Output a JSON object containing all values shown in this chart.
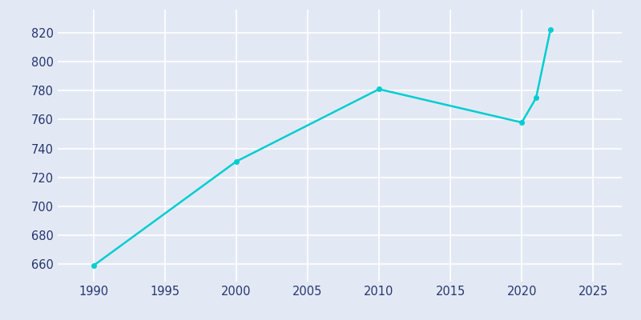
{
  "years": [
    1990,
    2000,
    2010,
    2020,
    2021,
    2022
  ],
  "population": [
    659,
    731,
    781,
    758,
    775,
    822
  ],
  "line_color": "#00CED1",
  "marker_color": "#00CED1",
  "background_color": "#E3E9F4",
  "plot_background_color": "#E3E9F4",
  "grid_color": "#FFFFFF",
  "xlim": [
    1987.5,
    2027
  ],
  "ylim": [
    648,
    836
  ],
  "xticks": [
    1990,
    1995,
    2000,
    2005,
    2010,
    2015,
    2020,
    2025
  ],
  "yticks": [
    660,
    680,
    700,
    720,
    740,
    760,
    780,
    800,
    820
  ],
  "tick_label_color": "#253570",
  "tick_fontsize": 10.5,
  "linewidth": 1.8,
  "markersize": 4
}
